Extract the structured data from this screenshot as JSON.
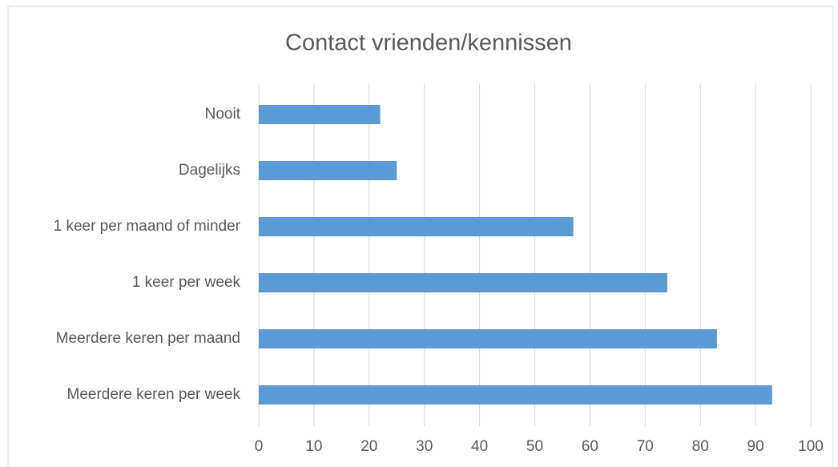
{
  "chart_data": {
    "type": "bar",
    "orientation": "horizontal",
    "title": "Contact vrienden/kennissen",
    "categories": [
      "Nooit",
      "Dagelijks",
      "1 keer per maand of minder",
      "1 keer per week",
      "Meerdere keren per maand",
      "Meerdere keren per week"
    ],
    "values": [
      22,
      25,
      57,
      74,
      83,
      93
    ],
    "color": "#5b9bd5",
    "xlim": [
      0,
      100
    ],
    "xticks": [
      0,
      10,
      20,
      30,
      40,
      50,
      60,
      70,
      80,
      90,
      100
    ],
    "grid": true
  }
}
